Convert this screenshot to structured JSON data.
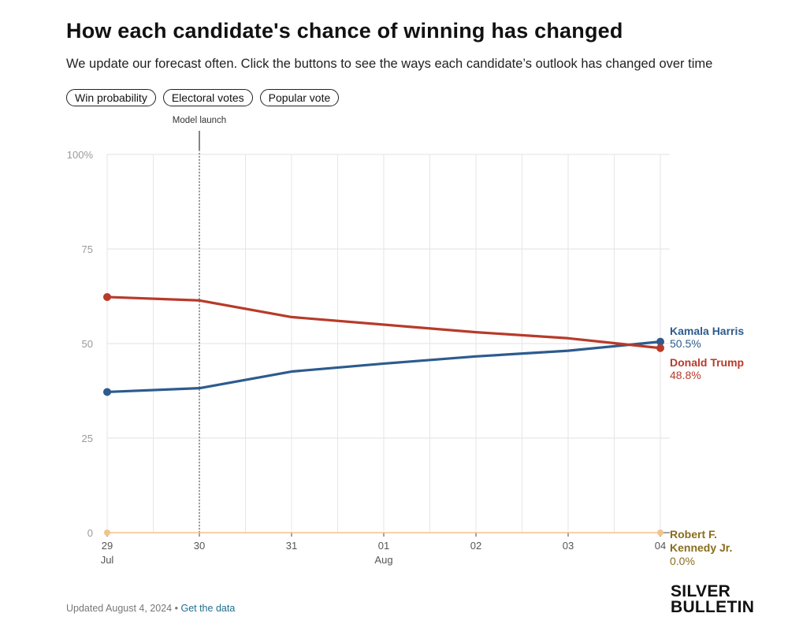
{
  "header": {
    "title": "How each candidate's chance of winning has changed",
    "subtitle": "We update our forecast often. Click the buttons to see the ways each candidate’s outlook has changed over time"
  },
  "buttons": [
    "Win probability",
    "Electoral votes",
    "Popular vote"
  ],
  "chart_data": {
    "type": "line",
    "x": [
      "2024-07-29",
      "2024-07-30",
      "2024-07-31",
      "2024-08-01",
      "2024-08-02",
      "2024-08-03",
      "2024-08-04"
    ],
    "x_tick_labels": [
      {
        "day": "29",
        "month": "Jul"
      },
      {
        "day": "30",
        "month": ""
      },
      {
        "day": "31",
        "month": ""
      },
      {
        "day": "01",
        "month": "Aug"
      },
      {
        "day": "02",
        "month": ""
      },
      {
        "day": "03",
        "month": ""
      },
      {
        "day": "04",
        "month": ""
      }
    ],
    "ylim": [
      0,
      100
    ],
    "y_ticks": [
      0,
      25,
      50,
      75,
      100
    ],
    "y_tick_labels": [
      "0",
      "25",
      "50",
      "75",
      "100%"
    ],
    "grid": true,
    "annotation": {
      "label": "Model launch",
      "x": "2024-07-30"
    },
    "series": [
      {
        "name": "Kamala Harris",
        "color": "#2d5b8e",
        "values": [
          37.2,
          38.2,
          42.6,
          44.7,
          46.6,
          48.1,
          50.5
        ],
        "end_label": "50.5%"
      },
      {
        "name": "Donald Trump",
        "color": "#b83a2a",
        "values": [
          62.3,
          61.4,
          57.0,
          55.0,
          53.0,
          51.4,
          48.8
        ],
        "end_label": "48.8%"
      },
      {
        "name": "Robert F. Kennedy Jr.",
        "color": "#f2c48c",
        "label_color": "#8a6d1e",
        "values": [
          0,
          0,
          0,
          0,
          0,
          0,
          0
        ],
        "end_label": "0.0%"
      }
    ]
  },
  "footer": {
    "updated": "Updated August 4, 2024",
    "separator": " • ",
    "link": "Get the data"
  },
  "brand": {
    "line1": "SILVER",
    "line2": "BULLETIN"
  }
}
